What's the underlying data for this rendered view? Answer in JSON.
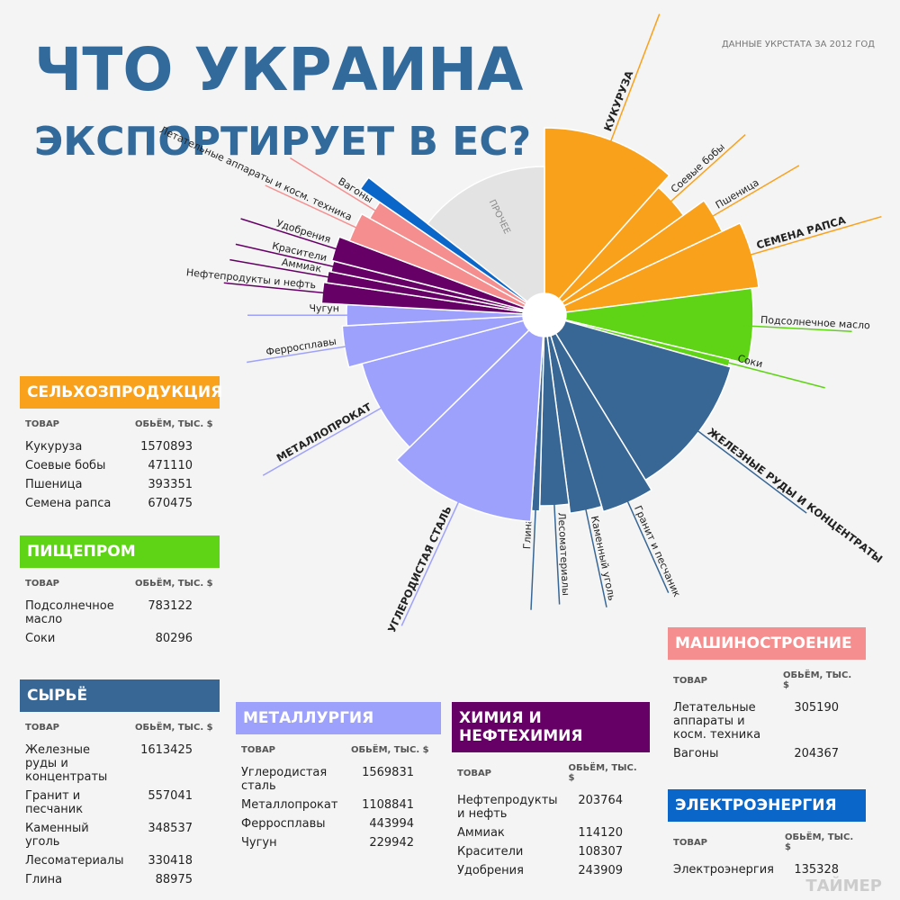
{
  "header": {
    "title_line1": "ЧТО УКРАИНА",
    "title_line2": "ЭКСПОРТИРУЕТ В ЕС?",
    "source": "ДАННЫЕ УКРСТАТА ЗА 2012 ГОД",
    "logo": "ТАЙМЕР"
  },
  "chart_data": {
    "type": "polar-area",
    "other_label": "ПРОЧЕЕ",
    "other_color": "#e3e3e3",
    "columns": [
      "ТОВАР",
      "ОБЬЁМ, ТЫС. $"
    ],
    "series": [
      {
        "name": "СЕЛЬХОЗПРОДУКЦИЯ",
        "color": "#f9a11b",
        "categories": [
          "Кукуруза",
          "Соевые бобы",
          "Пшеница",
          "Семена рапса"
        ],
        "values": [
          1570893,
          471110,
          393351,
          670475
        ]
      },
      {
        "name": "ПИЩЕПРОМ",
        "color": "#5fd315",
        "categories": [
          "Подсолнечное масло",
          "Соки"
        ],
        "values": [
          783122,
          80296
        ]
      },
      {
        "name": "СЫРЬЁ",
        "color": "#386795",
        "categories": [
          "Железные руды и концентраты",
          "Гранит и песчаник",
          "Каменный уголь",
          "Лесоматериалы",
          "Глина"
        ],
        "values": [
          1613425,
          557041,
          348537,
          330418,
          88975
        ]
      },
      {
        "name": "МЕТАЛЛУРГИЯ",
        "color": "#9ea1fb",
        "categories": [
          "Углеродистая сталь",
          "Металлопрокат",
          "Ферросплавы",
          "Чугун"
        ],
        "values": [
          1569831,
          1108841,
          443994,
          229942
        ]
      },
      {
        "name": "ХИМИЯ И НЕФТЕХИМИЯ",
        "color": "#660066",
        "categories": [
          "Нефтепродукты и нефть",
          "Аммиак",
          "Красители",
          "Удобрения"
        ],
        "values": [
          203764,
          114120,
          108307,
          243909
        ]
      },
      {
        "name": "МАШИНОСТРОЕНИЕ",
        "color": "#f58f8f",
        "categories": [
          "Летательные аппараты и косм. техника",
          "Вагоны"
        ],
        "values": [
          305190,
          204367
        ]
      },
      {
        "name": "ЭЛЕКТРОЭНЕРГИЯ",
        "color": "#0a66c8",
        "categories": [
          "Электроэнергия"
        ],
        "values": [
          135328
        ]
      }
    ]
  }
}
